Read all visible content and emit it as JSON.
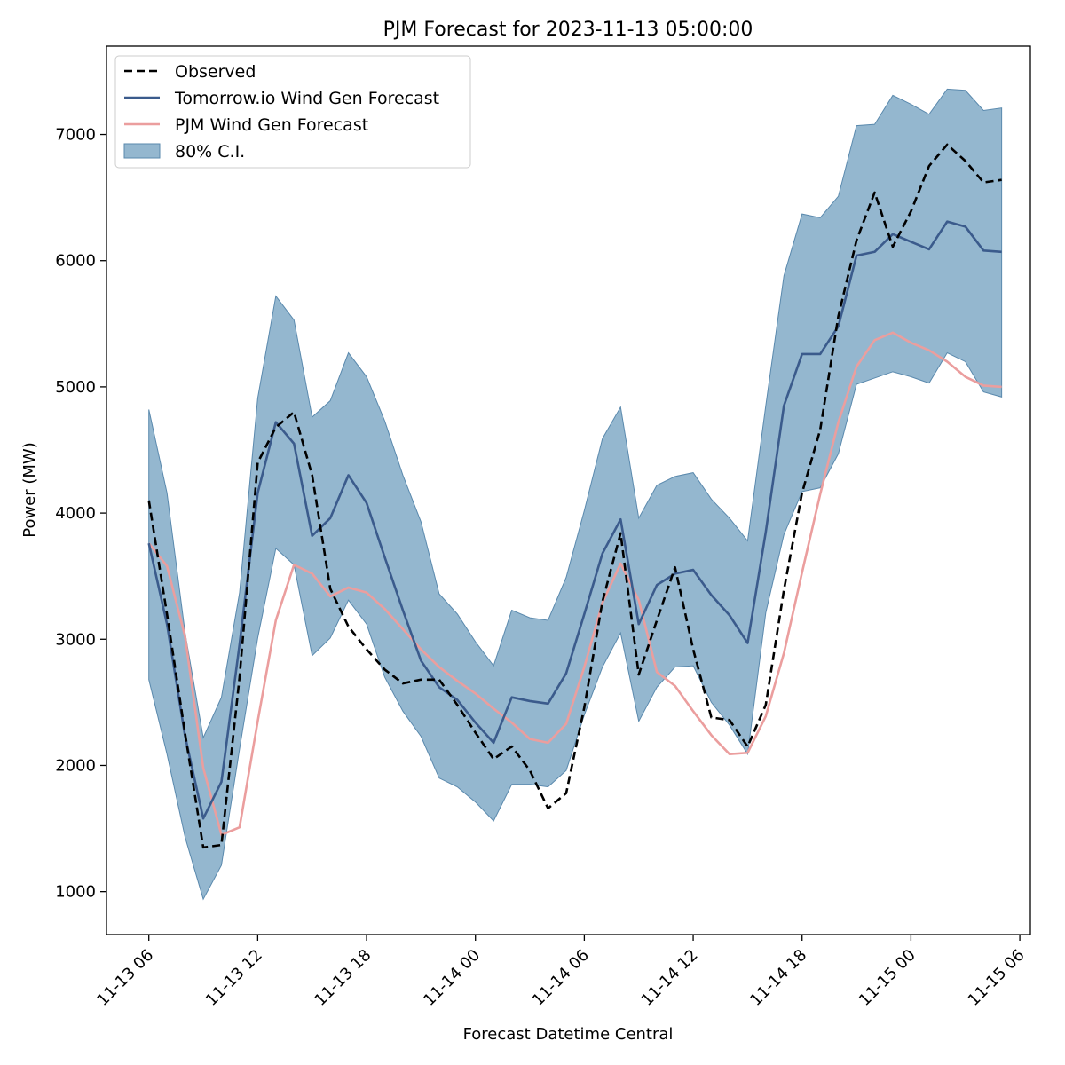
{
  "chart_data": {
    "type": "line",
    "title": "PJM Forecast for 2023-11-13 05:00:00",
    "xlabel": "Forecast Datetime Central",
    "ylabel": "Power (MW)",
    "x_start": "2023-11-13 06:00",
    "x_step": "1 hour",
    "xlim": [
      "2023-11-13 03:40",
      "2023-11-15 06:35"
    ],
    "ylim": [
      660,
      7700
    ],
    "yticks": [
      1000,
      2000,
      3000,
      4000,
      5000,
      6000,
      7000
    ],
    "ytick_labels": [
      "1000",
      "2000",
      "3000",
      "4000",
      "5000",
      "6000",
      "7000"
    ],
    "xticks": [
      "2023-11-13 06:00",
      "2023-11-13 12:00",
      "2023-11-13 18:00",
      "2023-11-14 00:00",
      "2023-11-14 06:00",
      "2023-11-14 12:00",
      "2023-11-14 18:00",
      "2023-11-15 00:00",
      "2023-11-15 06:00"
    ],
    "xtick_labels": [
      "11-13 06",
      "11-13 12",
      "11-13 18",
      "11-14 00",
      "11-14 06",
      "11-14 12",
      "11-14 18",
      "11-15 00",
      "11-15 06"
    ],
    "grid": false,
    "legend_position": "top-left",
    "series": [
      {
        "name": "Observed",
        "style": "dashed",
        "color": "#000000",
        "values": [
          4100,
          3200,
          2250,
          1350,
          1370,
          2700,
          4400,
          4680,
          4800,
          4300,
          3400,
          3100,
          2920,
          2760,
          2650,
          2680,
          2680,
          2480,
          2260,
          2050,
          2150,
          1960,
          1660,
          1780,
          2460,
          3300,
          3840,
          2720,
          3150,
          3570,
          2920,
          2380,
          2360,
          2150,
          2480,
          3390,
          4160,
          4660,
          5560,
          6160,
          6540,
          6110,
          6390,
          6750,
          6920,
          6790,
          6620,
          6640
        ]
      },
      {
        "name": "Tomorrow.io Wind Gen Forecast",
        "style": "solid",
        "color": "#3b5b8c",
        "values": [
          3760,
          3120,
          2230,
          1580,
          1870,
          2960,
          4160,
          4720,
          4550,
          3820,
          3960,
          4300,
          4080,
          3650,
          3230,
          2830,
          2620,
          2520,
          2340,
          2180,
          2540,
          2510,
          2490,
          2730,
          3200,
          3680,
          3950,
          3120,
          3430,
          3520,
          3550,
          3350,
          3190,
          2970,
          3850,
          4850,
          5260,
          5260,
          5480,
          6040,
          6070,
          6210,
          6150,
          6090,
          6310,
          6270,
          6080,
          6070
        ]
      },
      {
        "name": "PJM Wind Gen Forecast",
        "style": "solid",
        "color": "#eb9e9e",
        "values": [
          3760,
          3580,
          3020,
          1980,
          1450,
          1510,
          2350,
          3150,
          3590,
          3520,
          3340,
          3410,
          3370,
          3240,
          3080,
          2920,
          2780,
          2670,
          2570,
          2450,
          2340,
          2210,
          2180,
          2330,
          2780,
          3290,
          3600,
          3310,
          2740,
          2630,
          2430,
          2240,
          2090,
          2100,
          2390,
          2890,
          3530,
          4150,
          4720,
          5160,
          5370,
          5430,
          5350,
          5290,
          5200,
          5080,
          5010,
          5000
        ]
      }
    ],
    "band": {
      "name": "80% C.I.",
      "color": "#6b9bbd",
      "lower": [
        2680,
        2090,
        1430,
        940,
        1210,
        2130,
        3010,
        3720,
        3590,
        2870,
        3010,
        3310,
        3120,
        2700,
        2430,
        2230,
        1900,
        1830,
        1710,
        1560,
        1850,
        1850,
        1830,
        1960,
        2400,
        2780,
        3050,
        2350,
        2620,
        2780,
        2790,
        2500,
        2320,
        2090,
        3210,
        3830,
        4170,
        4200,
        4470,
        5020,
        5070,
        5120,
        5080,
        5030,
        5270,
        5200,
        4960,
        4920
      ],
      "upper": [
        4820,
        4160,
        3050,
        2220,
        2540,
        3370,
        4910,
        5720,
        5530,
        4760,
        4890,
        5270,
        5080,
        4730,
        4300,
        3930,
        3360,
        3200,
        2980,
        2790,
        3230,
        3170,
        3150,
        3490,
        4020,
        4590,
        4840,
        3960,
        4220,
        4290,
        4320,
        4110,
        3960,
        3780,
        4850,
        5880,
        6370,
        6340,
        6510,
        7070,
        7080,
        7310,
        7240,
        7160,
        7360,
        7350,
        7190,
        7210
      ]
    }
  }
}
